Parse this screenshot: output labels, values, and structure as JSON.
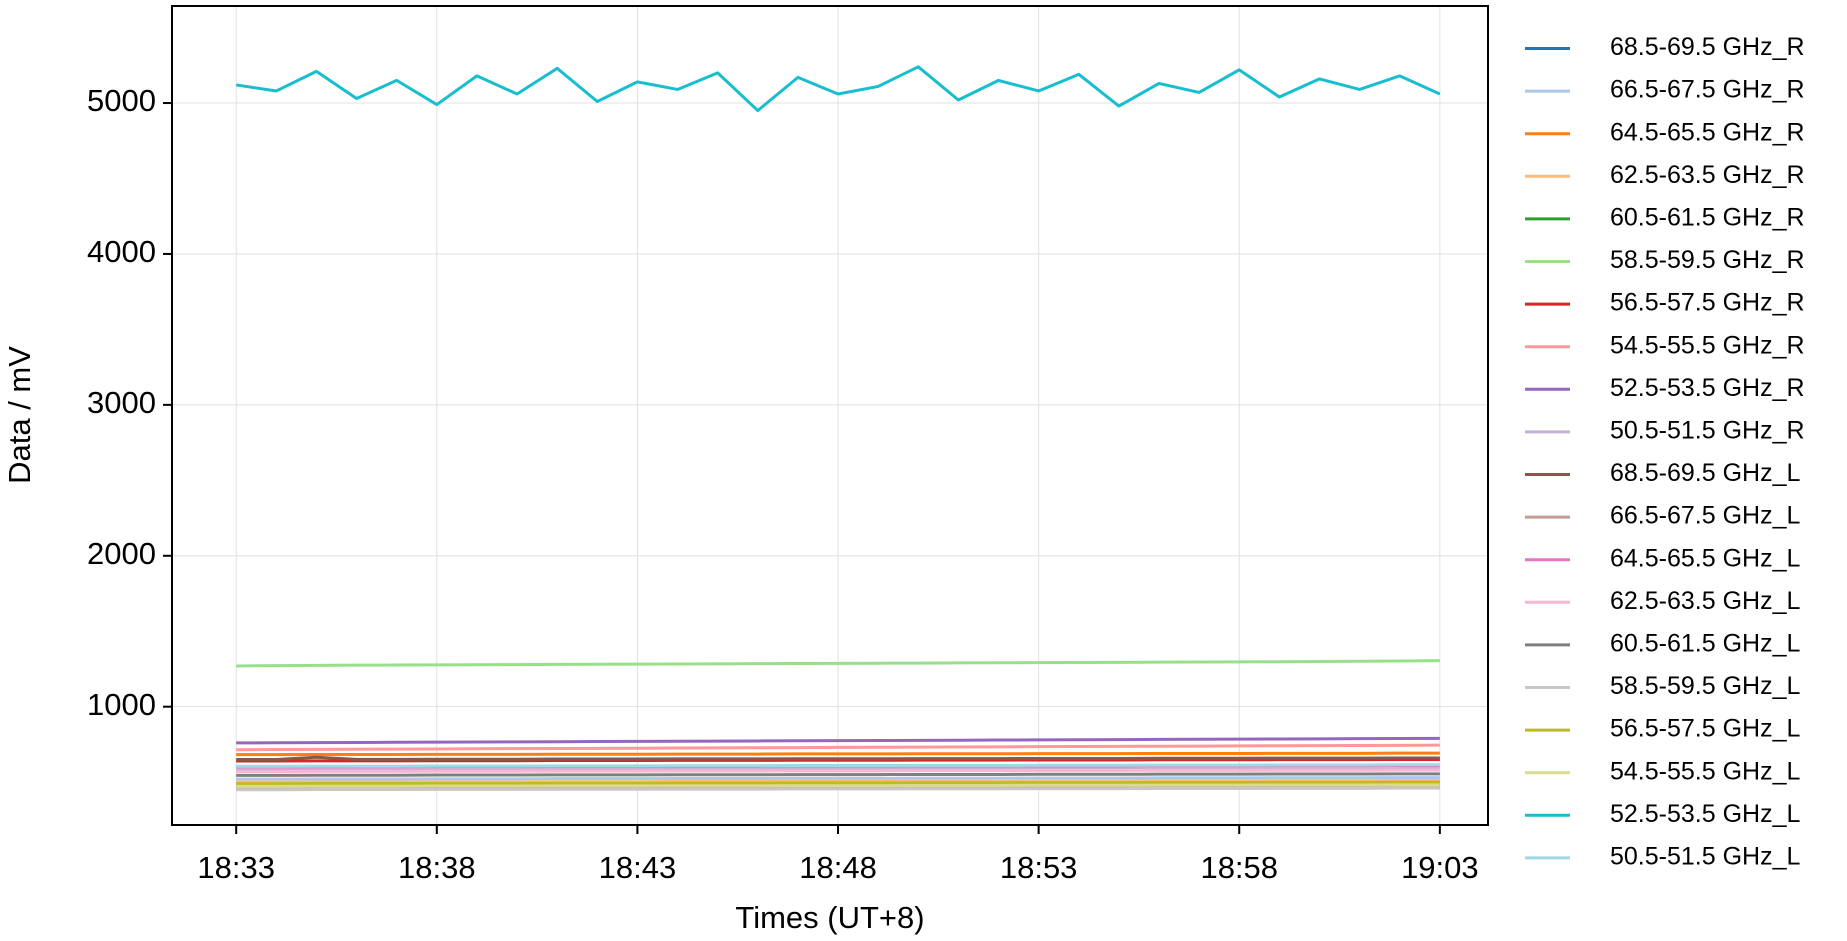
{
  "chart_data": {
    "type": "line",
    "x_label": "Times (UT+8)",
    "y_label": "Data / mV",
    "x": [
      "18:33",
      "18:34",
      "18:35",
      "18:36",
      "18:37",
      "18:38",
      "18:39",
      "18:40",
      "18:41",
      "18:42",
      "18:43",
      "18:44",
      "18:45",
      "18:46",
      "18:47",
      "18:48",
      "18:49",
      "18:50",
      "18:51",
      "18:52",
      "18:53",
      "18:54",
      "18:55",
      "18:56",
      "18:57",
      "18:58",
      "18:59",
      "19:00",
      "19:01",
      "19:02",
      "19:03"
    ],
    "xlim": [
      "18:31:24",
      "19:04:12"
    ],
    "xticks": [
      "18:33",
      "18:38",
      "18:43",
      "18:48",
      "18:53",
      "18:58",
      "19:03"
    ],
    "ylim": [
      216,
      5643
    ],
    "yticks": [
      1000,
      2000,
      3000,
      4000,
      5000
    ],
    "grid": true,
    "legend": "right-outside",
    "series": [
      {
        "name": "68.5-69.5 GHz_R",
        "color": "#1f77b4",
        "values": [
          470,
          470,
          471,
          471,
          471,
          472,
          472,
          472,
          473,
          473,
          473,
          474,
          474,
          474,
          475,
          475,
          475,
          476,
          476,
          476,
          477,
          477,
          477,
          478,
          478,
          478,
          479,
          479,
          479,
          480,
          480
        ]
      },
      {
        "name": "66.5-67.5 GHz_R",
        "color": "#aec7e8",
        "values": [
          520,
          520,
          521,
          521,
          521,
          522,
          522,
          522,
          523,
          523,
          523,
          524,
          524,
          524,
          525,
          525,
          525,
          526,
          526,
          526,
          527,
          527,
          527,
          528,
          528,
          528,
          529,
          529,
          529,
          530,
          530
        ]
      },
      {
        "name": "64.5-65.5 GHz_R",
        "color": "#ff7f0e",
        "values": [
          682,
          682,
          683,
          683,
          683,
          684,
          684,
          684,
          685,
          685,
          685,
          686,
          686,
          686,
          687,
          687,
          687,
          688,
          688,
          688,
          689,
          689,
          689,
          690,
          690,
          690,
          691,
          691,
          691,
          692,
          692
        ]
      },
      {
        "name": "62.5-63.5 GHz_R",
        "color": "#ffbb78",
        "values": [
          500,
          500,
          501,
          501,
          501,
          502,
          502,
          502,
          503,
          503,
          503,
          504,
          504,
          504,
          505,
          505,
          505,
          506,
          506,
          506,
          507,
          507,
          507,
          508,
          508,
          508,
          509,
          509,
          509,
          510,
          510
        ]
      },
      {
        "name": "60.5-61.5 GHz_R",
        "color": "#2ca02c",
        "values": [
          480,
          480,
          481,
          481,
          481,
          482,
          482,
          482,
          483,
          483,
          483,
          484,
          484,
          484,
          485,
          485,
          485,
          486,
          486,
          486,
          487,
          487,
          487,
          488,
          488,
          488,
          489,
          489,
          489,
          490,
          490
        ]
      },
      {
        "name": "58.5-59.5 GHz_R",
        "color": "#98df8a",
        "values": [
          1270,
          1272,
          1274,
          1275,
          1276,
          1277,
          1278,
          1279,
          1280,
          1281,
          1282,
          1283,
          1284,
          1285,
          1286,
          1287,
          1288,
          1289,
          1290,
          1291,
          1292,
          1293,
          1294,
          1295,
          1296,
          1297,
          1298,
          1299,
          1301,
          1303,
          1305
        ]
      },
      {
        "name": "56.5-57.5 GHz_R",
        "color": "#d62728",
        "values": [
          640,
          640,
          641,
          641,
          641,
          642,
          642,
          642,
          643,
          643,
          643,
          644,
          644,
          644,
          645,
          645,
          645,
          646,
          646,
          646,
          647,
          647,
          647,
          648,
          648,
          648,
          649,
          649,
          649,
          650,
          650
        ]
      },
      {
        "name": "54.5-55.5 GHz_R",
        "color": "#ff9896",
        "values": [
          715,
          716,
          717,
          718,
          719,
          720,
          721,
          722,
          723,
          724,
          725,
          726,
          727,
          728,
          729,
          730,
          731,
          732,
          733,
          734,
          735,
          736,
          737,
          738,
          739,
          740,
          741,
          742,
          743,
          744,
          745
        ]
      },
      {
        "name": "52.5-53.5 GHz_R",
        "color": "#9467bd",
        "values": [
          760,
          761,
          762,
          763,
          764,
          765,
          766,
          767,
          768,
          769,
          770,
          771,
          772,
          773,
          774,
          775,
          776,
          777,
          778,
          779,
          780,
          781,
          782,
          783,
          784,
          785,
          786,
          787,
          788,
          789,
          790
        ]
      },
      {
        "name": "50.5-51.5 GHz_R",
        "color": "#c5b0d5",
        "values": [
          580,
          580,
          581,
          581,
          581,
          582,
          582,
          582,
          583,
          583,
          583,
          584,
          584,
          584,
          585,
          585,
          585,
          586,
          586,
          586,
          587,
          587,
          587,
          588,
          588,
          588,
          589,
          589,
          589,
          590,
          590
        ]
      },
      {
        "name": "68.5-69.5 GHz_L",
        "color": "#8c564b",
        "values": [
          650,
          650,
          665,
          651,
          651,
          652,
          652,
          652,
          653,
          653,
          653,
          654,
          654,
          654,
          655,
          655,
          655,
          656,
          656,
          656,
          657,
          657,
          657,
          658,
          658,
          658,
          659,
          659,
          659,
          660,
          660
        ]
      },
      {
        "name": "66.5-67.5 GHz_L",
        "color": "#c49c94",
        "values": [
          458,
          458,
          459,
          459,
          459,
          460,
          460,
          460,
          461,
          461,
          461,
          462,
          462,
          462,
          463,
          463,
          463,
          464,
          464,
          464,
          465,
          465,
          465,
          466,
          466,
          466,
          467,
          467,
          467,
          468,
          468
        ]
      },
      {
        "name": "64.5-65.5 GHz_L",
        "color": "#e377c2",
        "values": [
          600,
          600,
          601,
          601,
          601,
          602,
          602,
          602,
          603,
          603,
          603,
          604,
          604,
          604,
          605,
          605,
          605,
          606,
          606,
          606,
          607,
          607,
          607,
          608,
          608,
          608,
          609,
          609,
          609,
          610,
          610
        ]
      },
      {
        "name": "62.5-63.5 GHz_L",
        "color": "#f7b6d2",
        "values": [
          570,
          570,
          571,
          571,
          571,
          572,
          572,
          572,
          573,
          573,
          573,
          574,
          574,
          574,
          575,
          575,
          575,
          576,
          576,
          576,
          577,
          577,
          577,
          578,
          578,
          578,
          579,
          579,
          579,
          580,
          580
        ]
      },
      {
        "name": "60.5-61.5 GHz_L",
        "color": "#7f7f7f",
        "values": [
          545,
          545,
          546,
          546,
          546,
          547,
          547,
          547,
          548,
          548,
          548,
          549,
          549,
          549,
          550,
          550,
          550,
          551,
          551,
          551,
          552,
          552,
          552,
          553,
          553,
          553,
          554,
          554,
          554,
          555,
          555
        ]
      },
      {
        "name": "58.5-59.5 GHz_L",
        "color": "#c7c7c7",
        "values": [
          450,
          450,
          451,
          451,
          451,
          452,
          452,
          452,
          453,
          453,
          453,
          454,
          454,
          454,
          455,
          455,
          455,
          456,
          456,
          456,
          457,
          457,
          457,
          458,
          458,
          458,
          459,
          459,
          459,
          460,
          460
        ]
      },
      {
        "name": "56.5-57.5 GHz_L",
        "color": "#bcbd22",
        "values": [
          490,
          490,
          491,
          491,
          491,
          492,
          492,
          492,
          493,
          493,
          493,
          494,
          494,
          494,
          495,
          495,
          495,
          496,
          496,
          496,
          497,
          497,
          497,
          498,
          498,
          498,
          499,
          499,
          499,
          500,
          500
        ]
      },
      {
        "name": "54.5-55.5 GHz_L",
        "color": "#dbdb8d",
        "values": [
          472,
          472,
          473,
          473,
          473,
          474,
          474,
          474,
          475,
          475,
          475,
          476,
          476,
          476,
          477,
          477,
          477,
          478,
          478,
          478,
          479,
          479,
          479,
          480,
          480,
          480,
          481,
          481,
          481,
          482,
          482
        ]
      },
      {
        "name": "52.5-53.5 GHz_L",
        "color": "#17becf",
        "values": [
          5120,
          5080,
          5210,
          5030,
          5150,
          4990,
          5180,
          5060,
          5230,
          5010,
          5140,
          5090,
          5200,
          4950,
          5170,
          5060,
          5110,
          5240,
          5020,
          5150,
          5080,
          5190,
          4980,
          5130,
          5070,
          5220,
          5040,
          5160,
          5090,
          5180,
          5060
        ]
      },
      {
        "name": "50.5-51.5 GHz_L",
        "color": "#9edae5",
        "values": [
          605,
          605,
          606,
          606,
          606,
          607,
          607,
          607,
          608,
          608,
          608,
          609,
          609,
          609,
          610,
          610,
          610,
          611,
          611,
          611,
          612,
          612,
          612,
          613,
          613,
          613,
          614,
          614,
          614,
          615,
          615
        ]
      }
    ]
  }
}
